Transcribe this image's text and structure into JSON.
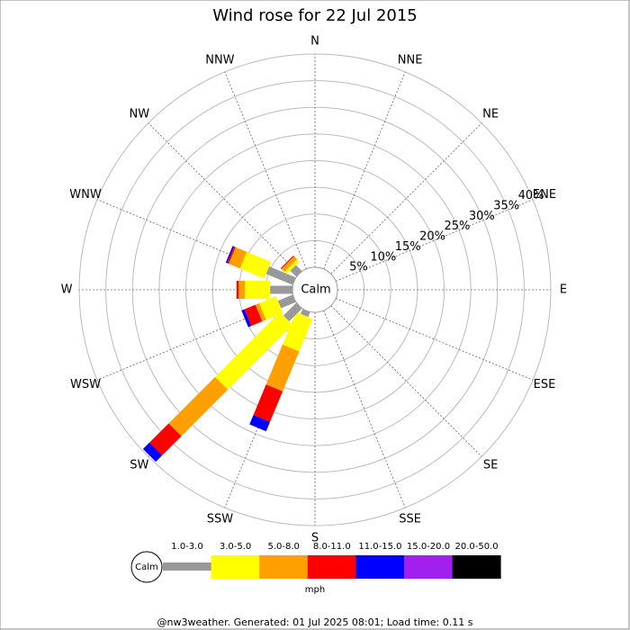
{
  "chart_data": {
    "type": "wind-rose",
    "title": "Wind rose for 22 Jul 2015",
    "directions": [
      "N",
      "NNE",
      "NE",
      "ENE",
      "E",
      "ESE",
      "SE",
      "SSE",
      "S",
      "SSW",
      "SW",
      "WSW",
      "W",
      "WNW",
      "NW",
      "NNW"
    ],
    "series": [
      {
        "name": "1.0-3.0",
        "color": "#999999",
        "values": [
          0,
          0,
          0,
          0,
          0,
          0,
          0,
          0,
          0,
          1.0,
          3.4,
          3.0,
          4.2,
          5.4,
          1.6,
          0
        ]
      },
      {
        "name": "3.0-5.0",
        "color": "#ffff00",
        "values": [
          0,
          0,
          0,
          0,
          0,
          0,
          0,
          0,
          0,
          6.6,
          17.2,
          3.4,
          4.7,
          4.9,
          0.6,
          0
        ]
      },
      {
        "name": "5.0-8.0",
        "color": "#ffa000",
        "values": [
          0,
          0,
          0,
          0,
          0,
          0,
          0,
          0,
          0,
          8.1,
          12.3,
          0.8,
          1.2,
          2.3,
          0.8,
          0
        ]
      },
      {
        "name": "8.0-11.0",
        "color": "#ff0000",
        "values": [
          0,
          0,
          0,
          0,
          0,
          0,
          0,
          0,
          0,
          6.2,
          5.1,
          2.2,
          0.4,
          0.3,
          0.2,
          0
        ]
      },
      {
        "name": "11.0-15.0",
        "color": "#0000ff",
        "values": [
          0,
          0,
          0,
          0,
          0,
          0,
          0,
          0,
          0,
          1.9,
          1.7,
          0.6,
          0,
          0.3,
          0,
          0
        ]
      },
      {
        "name": "15.0-20.0",
        "color": "#a020f0",
        "values": [
          0,
          0,
          0,
          0,
          0,
          0,
          0,
          0,
          0,
          0,
          0,
          0,
          0,
          0,
          0,
          0
        ]
      },
      {
        "name": "20.0-50.0",
        "color": "#000000",
        "values": [
          0,
          0,
          0,
          0,
          0,
          0,
          0,
          0,
          0,
          0,
          0,
          0,
          0,
          0,
          0,
          0
        ]
      }
    ],
    "rlim": [
      0,
      40
    ],
    "rticks": [
      {
        "value": 5,
        "label": "5%"
      },
      {
        "value": 10,
        "label": "10%"
      },
      {
        "value": 15,
        "label": "15%"
      },
      {
        "value": 20,
        "label": "20%"
      },
      {
        "value": 25,
        "label": "25%"
      },
      {
        "value": 30,
        "label": "30%"
      },
      {
        "value": 35,
        "label": "35%"
      },
      {
        "value": 40,
        "label": "40%"
      }
    ],
    "calm_label": "Calm",
    "unit": "mph",
    "footer": "@nw3weather. Generated: 01 Jul 2025 08:01; Load time: 0.11 s"
  }
}
